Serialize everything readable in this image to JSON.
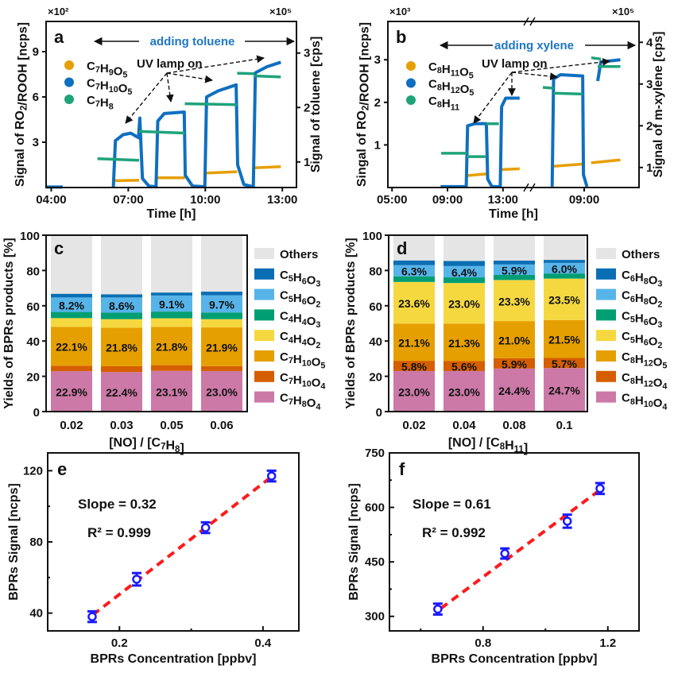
{
  "chart_data": [
    {
      "panel": "a",
      "type": "line",
      "label": "a",
      "xlabel": "Time [h]",
      "ylabel_left": "Signal of RO2/ROOH [ncps]",
      "ylabel_right": "Signal of toluene [cps]",
      "multiplier_left": "×10²",
      "multiplier_right": "×10⁵",
      "xlim": [
        3.8,
        13.55
      ],
      "ylim_left": [
        0,
        11
      ],
      "ylim_right": [
        0.53,
        3.58
      ],
      "xticks": [
        {
          "v": 4,
          "label": "04:00"
        },
        {
          "v": 7,
          "label": "07:00"
        },
        {
          "v": 10,
          "label": "10:00"
        },
        {
          "v": 13,
          "label": "13:00"
        }
      ],
      "yticks_left": [
        {
          "v": 3,
          "label": "3"
        },
        {
          "v": 6,
          "label": "6"
        },
        {
          "v": 9,
          "label": "9"
        }
      ],
      "yticks_right": [
        {
          "v": 1,
          "label": "1"
        },
        {
          "v": 2,
          "label": "2"
        },
        {
          "v": 3,
          "label": "3"
        }
      ],
      "annotation_adding": "adding toluene",
      "annotation_uv": "UV lamp on",
      "series": [
        {
          "name": "C7H9O5",
          "axis": "left",
          "color": "#e69f00",
          "segments": [
            [
              [
                6.45,
                0.45
              ],
              [
                7.42,
                0.48
              ]
            ],
            [
              [
                8.1,
                0.65
              ],
              [
                9.2,
                0.65
              ]
            ],
            [
              [
                10.0,
                0.95
              ],
              [
                11.24,
                1.05
              ]
            ],
            [
              [
                11.9,
                1.3
              ],
              [
                12.94,
                1.38
              ]
            ]
          ]
        },
        {
          "name": "C7H10O5",
          "axis": "left",
          "color": "#0f6fc0",
          "segments": [
            [
              [
                3.8,
                0.03
              ],
              [
                4.45,
                0.03
              ]
            ],
            [
              [
                6.42,
                0.02
              ],
              [
                6.5,
                3.1
              ],
              [
                6.8,
                3.5
              ],
              [
                7.1,
                3.6
              ],
              [
                7.4,
                3.3
              ],
              [
                7.45,
                4.6
              ],
              [
                7.55,
                0.6
              ],
              [
                7.8,
                0.1
              ],
              [
                8.08,
                0.05
              ],
              [
                8.15,
                4.4
              ],
              [
                8.4,
                4.9
              ],
              [
                9.18,
                5.0
              ],
              [
                9.22,
                0.8
              ],
              [
                9.5,
                0.1
              ],
              [
                9.98,
                0.05
              ],
              [
                10.05,
                6.0
              ],
              [
                10.5,
                6.4
              ],
              [
                11.2,
                6.8
              ],
              [
                11.26,
                1.5
              ],
              [
                11.5,
                0.2
              ],
              [
                11.87,
                0.05
              ],
              [
                11.95,
                7.6
              ],
              [
                12.4,
                8.0
              ],
              [
                12.94,
                8.3
              ]
            ]
          ]
        },
        {
          "name": "C7H8",
          "axis": "right",
          "color": "#1fa37a",
          "segments": [
            [
              [
                5.8,
                1.06
              ],
              [
                7.42,
                1.03
              ]
            ],
            [
              [
                7.42,
                1.56
              ],
              [
                9.2,
                1.53
              ]
            ],
            [
              [
                9.2,
                2.07
              ],
              [
                11.24,
                2.05
              ]
            ],
            [
              [
                11.24,
                2.63
              ],
              [
                11.9,
                2.62
              ]
            ],
            [
              [
                11.9,
                2.58
              ],
              [
                12.94,
                2.56
              ]
            ]
          ]
        }
      ]
    },
    {
      "panel": "b",
      "type": "line",
      "label": "b",
      "xlabel": "Time [h]",
      "ylabel_left": "Singal of RO2/ROOH  [ncps]",
      "ylabel_right": "Signal of m-xylene [cps]",
      "multiplier_left": "×10³",
      "multiplier_right": "×10⁵",
      "axis_break": true,
      "xlim_part1": [
        4.7,
        14.9
      ],
      "xlim_part2": [
        5.06,
        12.94
      ],
      "ylim_left": [
        0,
        3.9
      ],
      "ylim_right": [
        0.52,
        4.5
      ],
      "xticks_part1": [
        {
          "v": 5,
          "label": "05:00"
        },
        {
          "v": 9,
          "label": "09:00"
        },
        {
          "v": 13,
          "label": "13:00"
        }
      ],
      "xticks_part2": [
        {
          "v": 9,
          "label": "09:00"
        }
      ],
      "yticks_left": [
        {
          "v": 1,
          "label": "1"
        },
        {
          "v": 2,
          "label": "2"
        },
        {
          "v": 3,
          "label": "3"
        }
      ],
      "yticks_right": [
        {
          "v": 1,
          "label": "1"
        },
        {
          "v": 2,
          "label": "2"
        },
        {
          "v": 3,
          "label": "3"
        },
        {
          "v": 4,
          "label": "4"
        }
      ],
      "annotation_adding": "adding xylene",
      "annotation_uv": "UV lamp on",
      "series": [
        {
          "name": "C8H11O5",
          "axis": "left",
          "color": "#e69f00",
          "part1": [
            [
              [
                10.4,
                0.28
              ],
              [
                11.8,
                0.32
              ]
            ],
            [
              [
                12.85,
                0.42
              ],
              [
                14.2,
                0.44
              ]
            ]
          ],
          "part2": [
            [
              [
                6.8,
                0.5
              ],
              [
                8.89,
                0.55
              ]
            ],
            [
              [
                9.5,
                0.58
              ],
              [
                11.6,
                0.65
              ]
            ]
          ]
        },
        {
          "name": "C8H12O5",
          "axis": "left",
          "color": "#0f6fc0",
          "part1": [
            [
              [
                8.5,
                0.02
              ],
              [
                10.35,
                0.02
              ],
              [
                10.45,
                1.45
              ],
              [
                11.0,
                1.5
              ],
              [
                11.8,
                1.5
              ],
              [
                11.9,
                0.2
              ],
              [
                12.2,
                0.02
              ],
              [
                12.8,
                0.02
              ],
              [
                12.9,
                1.9
              ],
              [
                13.2,
                2.1
              ],
              [
                14.2,
                2.1
              ]
            ]
          ],
          "part2": [
            [
              [
                6.7,
                0.02
              ],
              [
                6.8,
                2.55
              ],
              [
                7.3,
                2.65
              ],
              [
                8.89,
                2.62
              ],
              [
                8.95,
                0.3
              ],
              [
                9.2,
                0.02
              ]
            ],
            [
              [
                9.97,
                2.5
              ],
              [
                10.2,
                2.95
              ],
              [
                11.6,
                3.0
              ]
            ]
          ]
        },
        {
          "name": "C8H11",
          "axis": "right",
          "color": "#1fa37a",
          "part1": [
            [
              [
                8.54,
                1.34
              ],
              [
                10.4,
                1.34
              ]
            ],
            [
              [
                10.4,
                1.26
              ],
              [
                11.8,
                1.26
              ]
            ],
            [
              [
                11.8,
                2.05
              ],
              [
                12.7,
                2.05
              ]
            ]
          ],
          "part2": [
            [
              [
                6.03,
                2.92
              ],
              [
                6.8,
                2.9
              ]
            ],
            [
              [
                6.8,
                2.78
              ],
              [
                8.89,
                2.76
              ]
            ],
            [
              [
                9.51,
                3.63
              ],
              [
                10.2,
                3.6
              ]
            ],
            [
              [
                9.97,
                3.42
              ],
              [
                11.6,
                3.42
              ]
            ]
          ]
        }
      ]
    },
    {
      "panel": "c",
      "type": "bar",
      "stacked": true,
      "label": "c",
      "xlabel": "[NO] / [C7H8]",
      "ylabel": "Yields of BPRs products [%]",
      "ylim": [
        0,
        100
      ],
      "yticks": [
        "0",
        "20",
        "40",
        "60",
        "80",
        "100"
      ],
      "categories": [
        "0.02",
        "0.03",
        "0.05",
        "0.06"
      ],
      "series": [
        {
          "name": "C7H8O4",
          "color": "#cc79a7",
          "values": [
            22.9,
            22.4,
            23.1,
            23.0
          ],
          "labeled": true,
          "label_color": "#111"
        },
        {
          "name": "C7H10O4",
          "color": "#d55e00",
          "values": [
            3.1,
            3.3,
            3.2,
            2.8
          ],
          "labeled": false
        },
        {
          "name": "C7H10O5",
          "color": "#e69f00",
          "values": [
            22.1,
            21.8,
            21.8,
            21.9
          ],
          "labeled": true,
          "label_color": "#111"
        },
        {
          "name": "C4H4O2",
          "color": "#f5d840",
          "values": [
            4.9,
            4.9,
            4.8,
            4.7
          ],
          "labeled": false
        },
        {
          "name": "C4H4O3",
          "color": "#009e73",
          "values": [
            3.5,
            3.7,
            3.8,
            3.8
          ],
          "labeled": false
        },
        {
          "name": "C5H6O2",
          "color": "#56b4e9",
          "values": [
            8.2,
            8.6,
            9.1,
            9.7
          ],
          "labeled": true,
          "label_color": "#111"
        },
        {
          "name": "C5H6O3",
          "color": "#0a6eb4",
          "values": [
            2.1,
            1.8,
            1.7,
            2.1
          ],
          "labeled": false
        },
        {
          "name": "Others",
          "color": "#e5e5e5",
          "values": [
            33.2,
            33.5,
            32.5,
            32.0
          ],
          "labeled": false
        }
      ]
    },
    {
      "panel": "d",
      "type": "bar",
      "stacked": true,
      "label": "d",
      "xlabel": "[NO] / [C8H11]",
      "ylabel": "Yields of BPRs products [%]",
      "ylim": [
        0,
        100
      ],
      "yticks": [
        "0",
        "20",
        "40",
        "60",
        "80",
        "100"
      ],
      "categories": [
        "0.02",
        "0.04",
        "0.08",
        "0.1"
      ],
      "series": [
        {
          "name": "C8H10O4",
          "color": "#cc79a7",
          "values": [
            23.0,
            23.0,
            24.4,
            24.7
          ],
          "labeled": true,
          "label_color": "#111"
        },
        {
          "name": "C8H12O4",
          "color": "#d55e00",
          "values": [
            5.8,
            5.6,
            5.9,
            5.7
          ],
          "labeled": true,
          "label_color": "#ffffff"
        },
        {
          "name": "C8H12O5",
          "color": "#e69f00",
          "values": [
            21.1,
            21.3,
            21.0,
            21.5
          ],
          "labeled": true,
          "label_color": "#111"
        },
        {
          "name": "C5H6O2",
          "color": "#f5d840",
          "values": [
            23.6,
            23.0,
            23.3,
            23.5
          ],
          "labeled": true,
          "label_color": "#111"
        },
        {
          "name": "C5H6O3",
          "color": "#009e73",
          "values": [
            3.2,
            3.2,
            2.9,
            2.9
          ],
          "labeled": false
        },
        {
          "name": "C6H8O2",
          "color": "#56b4e9",
          "values": [
            6.3,
            6.4,
            5.9,
            6.0
          ],
          "labeled": true,
          "label_color": "#111"
        },
        {
          "name": "C6H8O3",
          "color": "#0a6eb4",
          "values": [
            2.7,
            2.9,
            2.2,
            1.7
          ],
          "labeled": false
        },
        {
          "name": "Others",
          "color": "#e5e5e5",
          "values": [
            14.3,
            14.6,
            14.4,
            14.0
          ],
          "labeled": false
        }
      ]
    },
    {
      "panel": "e",
      "type": "scatter",
      "label": "e",
      "xlabel": "BPRs Concentration [ppbv]",
      "ylabel": "BPRs Signal [ncps]",
      "xlim": [
        0.1,
        0.45
      ],
      "ylim": [
        30,
        130
      ],
      "xticks": [
        {
          "v": 0.2,
          "label": "0.2"
        },
        {
          "v": 0.4,
          "label": "0.4"
        }
      ],
      "xminor": [
        0.3
      ],
      "yticks": [
        {
          "v": 40,
          "label": "40"
        },
        {
          "v": 80,
          "label": "80"
        },
        {
          "v": 120,
          "label": "120"
        }
      ],
      "yminor": [
        60,
        100
      ],
      "points": [
        {
          "x": 0.162,
          "y": 38,
          "err": 3
        },
        {
          "x": 0.224,
          "y": 59,
          "err": 3.5
        },
        {
          "x": 0.32,
          "y": 88,
          "err": 3
        },
        {
          "x": 0.412,
          "y": 117,
          "err": 3
        }
      ],
      "fit": {
        "x": [
          0.163,
          0.41
        ],
        "y": [
          39,
          116
        ],
        "color": "#ff1a1a"
      },
      "slope_text": "Slope = 0.32",
      "r2_text": "R² = 0.999",
      "marker_color": "#1a1aff"
    },
    {
      "panel": "f",
      "type": "scatter",
      "label": "f",
      "xlabel": "BPRs Concentration [ppbv]",
      "ylabel": "BPRs Signal [ncps]",
      "xlim": [
        0.5,
        1.3
      ],
      "ylim": [
        260,
        750
      ],
      "xticks": [
        {
          "v": 0.8,
          "label": "0.8"
        },
        {
          "v": 1.2,
          "label": "1.2"
        }
      ],
      "xminor": [
        0.6,
        1.0
      ],
      "yticks": [
        {
          "v": 300,
          "label": "300"
        },
        {
          "v": 450,
          "label": "450"
        },
        {
          "v": 600,
          "label": "600"
        },
        {
          "v": 750,
          "label": "750"
        }
      ],
      "yminor": [
        375,
        525,
        675
      ],
      "points": [
        {
          "x": 0.655,
          "y": 320,
          "err": 15
        },
        {
          "x": 0.87,
          "y": 473,
          "err": 14
        },
        {
          "x": 1.07,
          "y": 562,
          "err": 18
        },
        {
          "x": 1.175,
          "y": 652,
          "err": 15
        }
      ],
      "fit": {
        "x": [
          0.665,
          1.17
        ],
        "y": [
          322,
          645
        ],
        "color": "#ff1a1a"
      },
      "slope_text": "Slope = 0.61",
      "r2_text": "R² = 0.992",
      "marker_color": "#1a1aff"
    }
  ]
}
